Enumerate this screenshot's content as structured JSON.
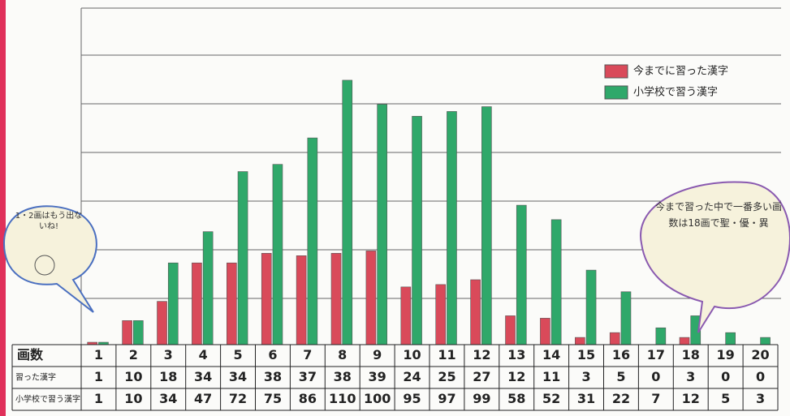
{
  "chart_data": {
    "type": "bar",
    "categories": [
      "1",
      "2",
      "3",
      "4",
      "5",
      "6",
      "7",
      "8",
      "9",
      "10",
      "11",
      "12",
      "13",
      "14",
      "15",
      "16",
      "17",
      "18",
      "19",
      "20"
    ],
    "row_header": "画数",
    "series": [
      {
        "name": "今までに習った漢字",
        "row_label": "習った漢字",
        "color": "#d94a5a",
        "values": [
          1,
          10,
          18,
          34,
          34,
          38,
          37,
          38,
          39,
          24,
          25,
          27,
          12,
          11,
          3,
          5,
          0,
          3,
          0,
          0
        ]
      },
      {
        "name": "小学校で習う漢字",
        "row_label": "小学校で習う漢字",
        "color": "#2fa86a",
        "values": [
          1,
          10,
          34,
          47,
          72,
          75,
          86,
          110,
          100,
          95,
          97,
          99,
          58,
          52,
          31,
          22,
          7,
          12,
          5,
          3
        ]
      }
    ],
    "ylim": [
      0,
      140
    ],
    "annotations": [
      "1・2画はもう出ないね!",
      "今まで習った中で一番多い画数は18画で聖・優・異"
    ]
  }
}
